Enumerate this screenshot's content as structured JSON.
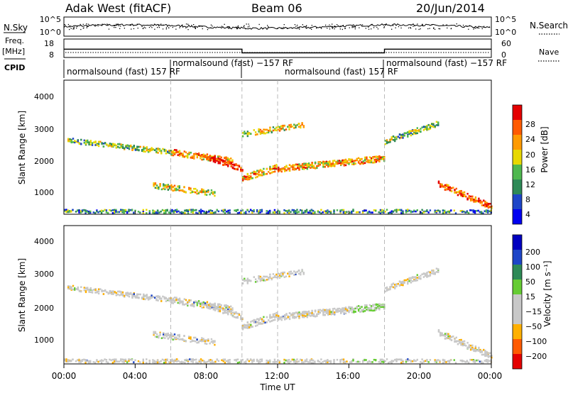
{
  "header": {
    "title": "Adak West (fitACF)",
    "beam": "Beam 06",
    "date": "20/Jun/2014"
  },
  "labels": {
    "nsky": "N.Sky",
    "freq_line1": "Freq.",
    "freq_line2": "[MHz]",
    "cpid": "CPID",
    "nsearch": "N.Search",
    "nave": "Nave"
  },
  "cpid_segments": [
    {
      "label": "normalsound (fast) 157 RF",
      "start_h": 0,
      "end_h": 6
    },
    {
      "label": "normalsound (fast) −157 RF",
      "start_h": 6,
      "end_h": 10
    },
    {
      "label": "normalsound (fast) 157 RF",
      "start_h": 10,
      "end_h": 18
    },
    {
      "label": "normalsound (fast) −157 RF",
      "start_h": 18,
      "end_h": 24
    }
  ],
  "colors": {
    "power": [
      "#0000f0",
      "#1e46c8",
      "#2e8a57",
      "#4fb84f",
      "#e8d800",
      "#ff9a00",
      "#ff5a00",
      "#e40000"
    ],
    "velocity": [
      "#e40000",
      "#ff5a00",
      "#ffb000",
      "#c8c8c8",
      "#c8c8c8",
      "#66cc33",
      "#2e8a57",
      "#1e46c8",
      "#0000c0"
    ]
  },
  "chart_data": [
    {
      "type": "line",
      "name": "noise-panel",
      "left_ylabel": "N.Sky",
      "left_ticks": [
        "10^5",
        "10^0"
      ],
      "right_ylabel": "N.Search",
      "right_ticks": [
        "10^5",
        "10^0"
      ]
    },
    {
      "type": "line",
      "name": "frequency-panel",
      "left_ylabel": "Freq. [MHz]",
      "left_ticks": [
        "18",
        "8"
      ],
      "right_ylabel": "Nave",
      "right_ticks": [
        "60",
        "0"
      ],
      "freq_steps": [
        {
          "start_h": 0,
          "end_h": 10,
          "value": 12.5
        },
        {
          "start_h": 10,
          "end_h": 18,
          "value": 10.5
        },
        {
          "start_h": 18,
          "end_h": 24,
          "value": 12.5
        }
      ],
      "freq_range": [
        8,
        18
      ]
    },
    {
      "type": "heatmap",
      "name": "power",
      "ylabel": "Slant Range [km]",
      "yticks": [
        "1000",
        "2000",
        "3000",
        "4000"
      ],
      "ylim": [
        180,
        4600
      ],
      "colorbar_label": "Power [dB]",
      "colorbar_ticks": [
        "4",
        "8",
        "12",
        "16",
        "20",
        "24",
        "28"
      ]
    },
    {
      "type": "heatmap",
      "name": "velocity",
      "ylabel": "Slant Range [km]",
      "yticks": [
        "1000",
        "2000",
        "3000",
        "4000"
      ],
      "ylim": [
        180,
        4600
      ],
      "colorbar_label": "Velocity [m s⁻¹]",
      "colorbar_ticks": [
        "200",
        "100",
        "50",
        "15",
        "−15",
        "−50",
        "−100",
        "−200"
      ]
    }
  ],
  "xaxis": {
    "label": "Time UT",
    "ticks": [
      "00:00",
      "04:00",
      "08:00",
      "12:00",
      "16:00",
      "20:00",
      "00:00"
    ],
    "range_h": [
      0,
      24
    ]
  }
}
